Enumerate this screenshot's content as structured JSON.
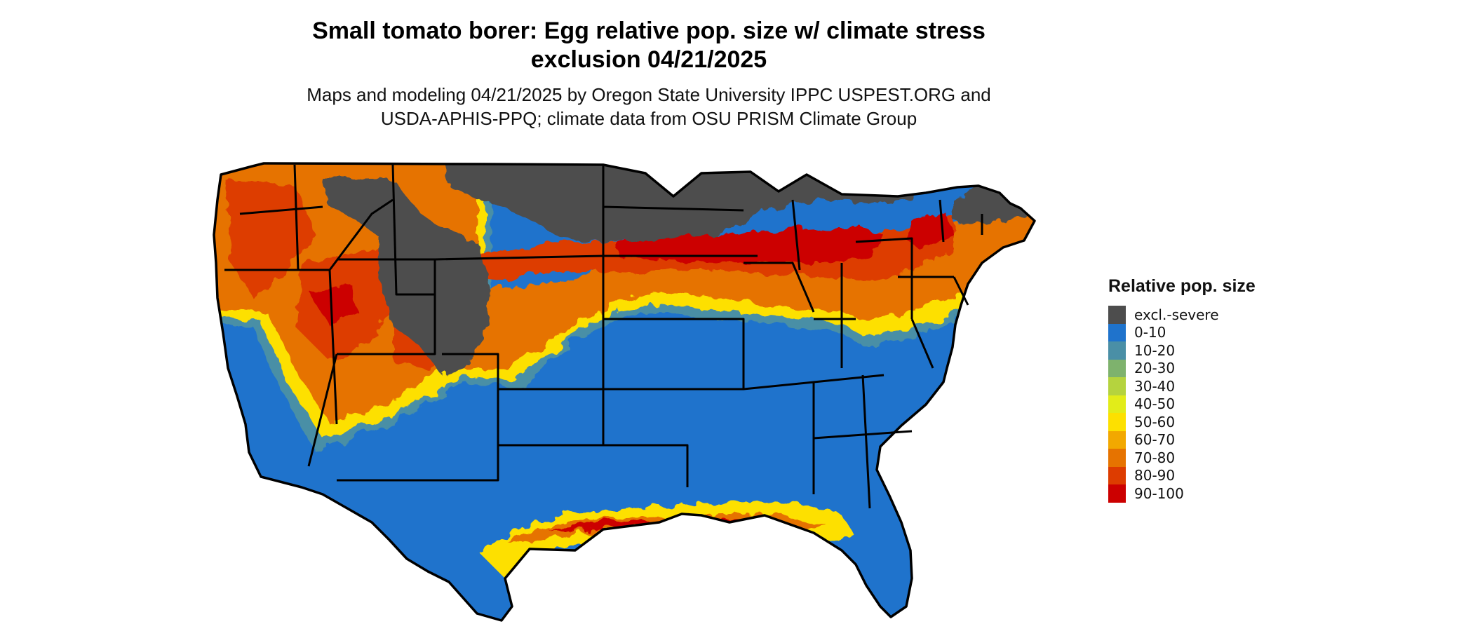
{
  "map": {
    "title_line1": "Small tomato borer: Egg relative pop. size w/ climate stress",
    "title_line2": "exclusion 04/21/2025",
    "subtitle_line1": "Maps and modeling 04/21/2025 by Oregon State University IPPC USPEST.ORG and",
    "subtitle_line2": "USDA-APHIS-PPQ; climate data from OSU PRISM Climate Group"
  },
  "legend": {
    "title": "Relative pop. size",
    "items": [
      {
        "label": "excl.-severe",
        "color": "#4d4d4d"
      },
      {
        "label": "0-10",
        "color": "#1f73cc"
      },
      {
        "label": "10-20",
        "color": "#4a8fa6"
      },
      {
        "label": "20-30",
        "color": "#7eb26d"
      },
      {
        "label": "30-40",
        "color": "#b5d33e"
      },
      {
        "label": "40-50",
        "color": "#e2ec19"
      },
      {
        "label": "50-60",
        "color": "#fde000"
      },
      {
        "label": "60-70",
        "color": "#f2a800"
      },
      {
        "label": "70-80",
        "color": "#e67300"
      },
      {
        "label": "80-90",
        "color": "#dd3c00"
      },
      {
        "label": "90-100",
        "color": "#cc0000"
      }
    ]
  },
  "colors": {
    "excluded": "#4d4d4d",
    "low": "#1f73cc",
    "mid": "#fde000",
    "high": "#e67300",
    "highest": "#cc0000",
    "state_border": "#000000"
  }
}
